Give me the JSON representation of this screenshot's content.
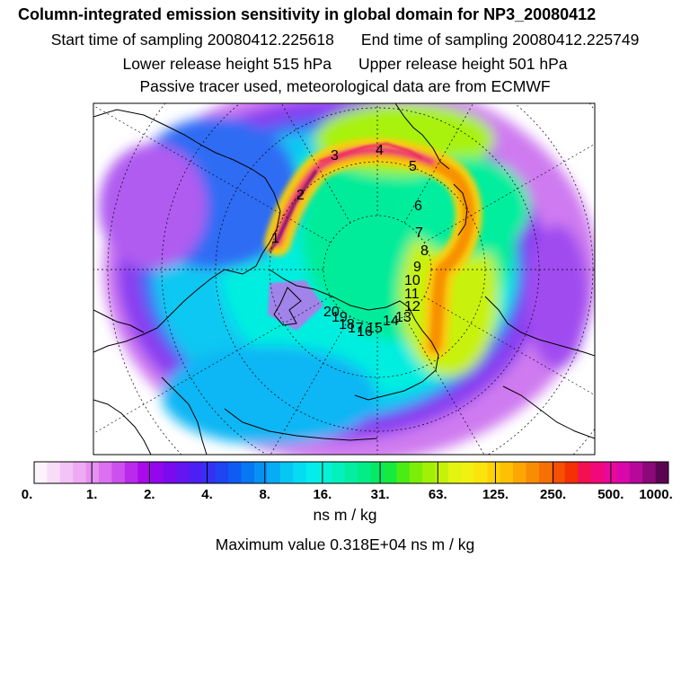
{
  "header": {
    "title": "Column-integrated emission sensitivity in global domain for NP3_20080412",
    "start_label": "Start time of sampling 20080412.225618",
    "end_label": "End time of sampling 20080412.225749",
    "lower_label": "Lower release height  515 hPa",
    "upper_label": "Upper release height  501 hPa",
    "tracer_label": "Passive tracer used, meteorological data are from ECMWF"
  },
  "chart_data": {
    "type": "heatmap",
    "projection": "north-polar stereographic",
    "colorbar": {
      "tick_labels": [
        "0.",
        "1.",
        "2.",
        "4.",
        "8.",
        "16.",
        "31.",
        "63.",
        "125.",
        "250.",
        "500.",
        "1000."
      ],
      "units": "ns m / kg",
      "colors": [
        "#fdf3fd",
        "#f8dcf8",
        "#f3c2f6",
        "#eeaaf4",
        "#e690f2",
        "#db70f0",
        "#cc50ee",
        "#bb2aec",
        "#a90bea",
        "#9207ec",
        "#7a0bee",
        "#6415f2",
        "#4c20f4",
        "#3530f4",
        "#1f44f4",
        "#0e5cf4",
        "#0877f4",
        "#0692f4",
        "#06acf4",
        "#06c6f4",
        "#05dcf2",
        "#04ecec",
        "#04f2d6",
        "#04f0bc",
        "#04eea2",
        "#04ec86",
        "#04ea66",
        "#16ea3e",
        "#4aec14",
        "#7aee06",
        "#a2f006",
        "#c4f20a",
        "#e2f410",
        "#f2f010",
        "#fae40c",
        "#fed206",
        "#fec004",
        "#fca604",
        "#fa8c04",
        "#f87004",
        "#f65004",
        "#f43004",
        "#f41050",
        "#f2087a",
        "#ea089c",
        "#d808ac",
        "#b8089c",
        "#8a0878",
        "#5c0454"
      ]
    },
    "max_value_label": "Maximum value  0.318E+04 ns m / kg",
    "trajectory_labels": [
      "1",
      "2",
      "3",
      "4",
      "5",
      "6",
      "7",
      "8",
      "9",
      "10",
      "11",
      "12",
      "13",
      "14",
      "15",
      "16",
      "17",
      "18",
      "19",
      "20"
    ]
  }
}
